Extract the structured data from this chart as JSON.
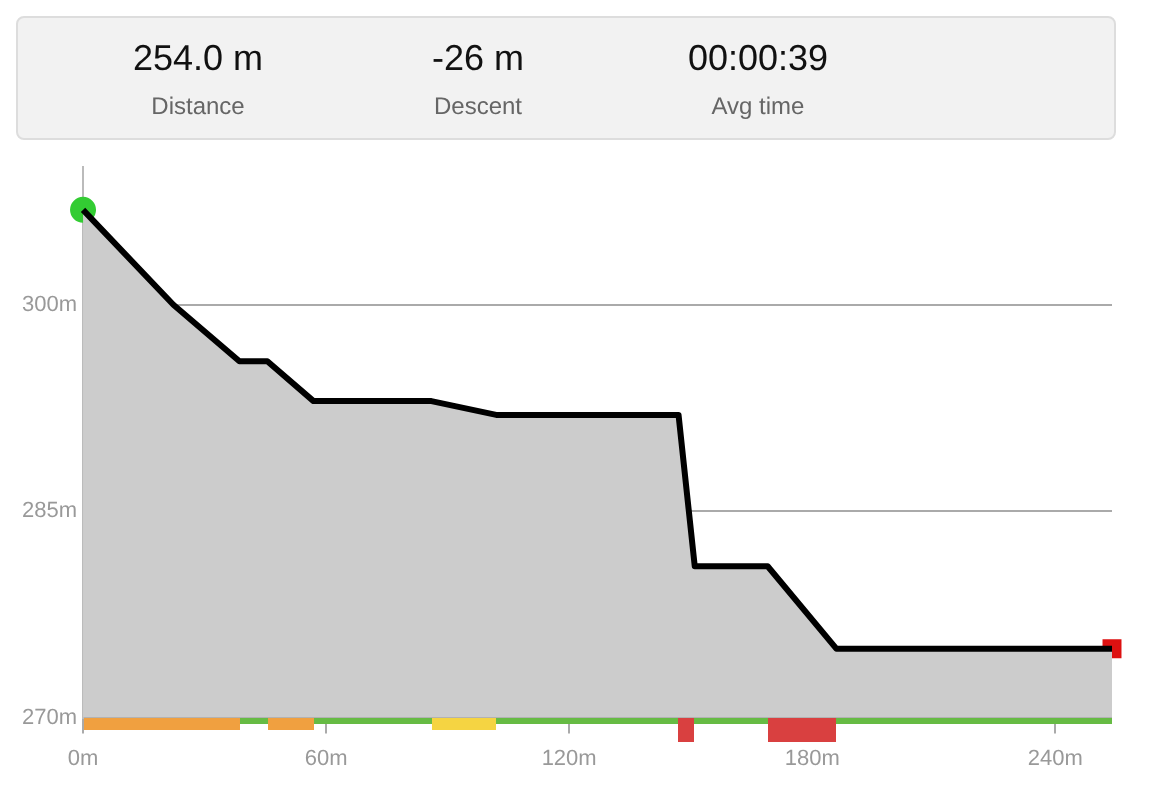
{
  "chart_data": [
    {
      "type": "other",
      "annotations": [
        "254.0 m",
        "Distance",
        "-26 m",
        "Descent",
        "00:00:39",
        "Avg time"
      ]
    },
    {
      "type": "area",
      "x": [
        0,
        22.3,
        38.6,
        45.5,
        56.9,
        86,
        102,
        147,
        151,
        169,
        186,
        254
      ],
      "xlim": [
        0,
        254
      ],
      "ylim": [
        270,
        310
      ],
      "xticks": [
        {
          "value": 0,
          "label": "0m"
        },
        {
          "value": 60,
          "label": "60m"
        },
        {
          "value": 120,
          "label": "120m"
        },
        {
          "value": 180,
          "label": "180m"
        },
        {
          "value": 240,
          "label": "240m"
        }
      ],
      "yticks": [
        {
          "value": 270,
          "label": "270m"
        },
        {
          "value": 285,
          "label": "285m"
        },
        {
          "value": 300,
          "label": "300m"
        }
      ],
      "grid": "y",
      "legend": false,
      "marker": "none",
      "line_style": "solid",
      "series": [
        {
          "type": "area",
          "color": "#000000",
          "values": [
            306.9,
            300,
            295.9,
            295.9,
            293,
            293,
            292,
            292,
            281,
            281,
            275,
            275
          ]
        },
        {
          "type": "scatter",
          "marker": "circle",
          "color": "#33cc33",
          "x": [
            0
          ],
          "values": [
            306.9
          ]
        },
        {
          "type": "scatter",
          "marker": "square",
          "color": "#dd1111",
          "x": [
            254
          ],
          "values": [
            275
          ]
        }
      ]
    }
  ]
}
